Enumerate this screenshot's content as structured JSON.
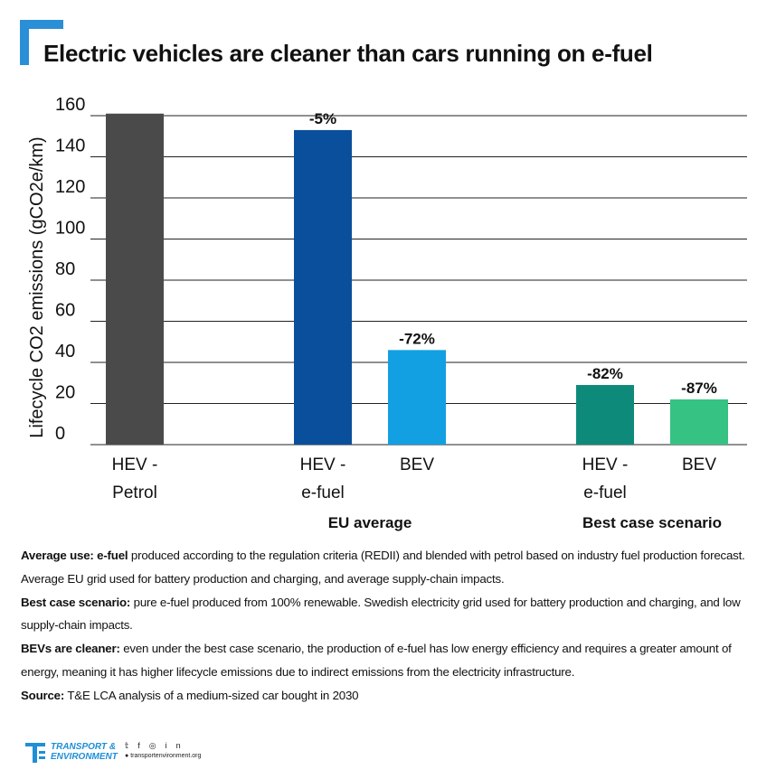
{
  "title": "Electric vehicles are cleaner than cars running on e-fuel",
  "colors": {
    "accent": "#2a8fd6",
    "petrol": "#4a4a4a",
    "hev_efuel": "#0a4f9c",
    "bev": "#12a0e3",
    "best_hev": "#0e8a7a",
    "best_bev": "#35c283",
    "grid": "#222222"
  },
  "chart_data": {
    "type": "bar",
    "ylabel": "Lifecycle CO2 emissions (gCO2e/km)",
    "ylim": [
      0,
      160
    ],
    "yticks": [
      0,
      20,
      40,
      60,
      80,
      100,
      120,
      140,
      160
    ],
    "grid": true,
    "bars": [
      {
        "label_line1": "HEV -",
        "label_line2": "Petrol",
        "value": 161,
        "annotation": "",
        "color": "#4a4a4a"
      },
      {
        "label_line1": "HEV -",
        "label_line2": "e-fuel",
        "value": 153,
        "annotation": "-5%",
        "color": "#0a4f9c"
      },
      {
        "label_line1": "BEV",
        "label_line2": "",
        "value": 46,
        "annotation": "-72%",
        "color": "#12a0e3"
      },
      {
        "label_line1": "HEV -",
        "label_line2": "e-fuel",
        "value": 29,
        "annotation": "-82%",
        "color": "#0e8a7a"
      },
      {
        "label_line1": "BEV",
        "label_line2": "",
        "value": 22,
        "annotation": "-87%",
        "color": "#35c283"
      }
    ],
    "groups": [
      {
        "label": "EU average",
        "bars": [
          1,
          2
        ]
      },
      {
        "label": "Best case scenario",
        "bars": [
          3,
          4
        ]
      }
    ]
  },
  "footnotes": {
    "average_use_label": "Average use:",
    "average_use_bold": "e-fuel",
    "average_use_text": "produced according to the regulation criteria (REDII) and blended with petrol based on industry fuel production forecast. Average EU grid used for battery production and charging, and average supply-chain impacts.",
    "best_case_label": "Best case scenario:",
    "best_case_text": "pure e-fuel produced from 100% renewable. Swedish electricity grid used for battery production and charging, and low supply-chain impacts.",
    "bevs_label": "BEVs are cleaner:",
    "bevs_text": "even under the best case scenario, the production of e-fuel has low energy efficiency and requires a greater amount of energy, meaning it has higher lifecycle emissions due to indirect emissions from the electricity infrastructure.",
    "source_label": "Source:",
    "source_text": "T&E LCA analysis of a medium-sized car bought in 2030"
  },
  "footer": {
    "logo_line1": "TRANSPORT &",
    "logo_line2": "ENVIRONMENT",
    "social_icons": [
      "twitter-icon",
      "facebook-icon",
      "instagram-icon",
      "linkedin-icon"
    ],
    "website": "transportenvironment.org"
  }
}
